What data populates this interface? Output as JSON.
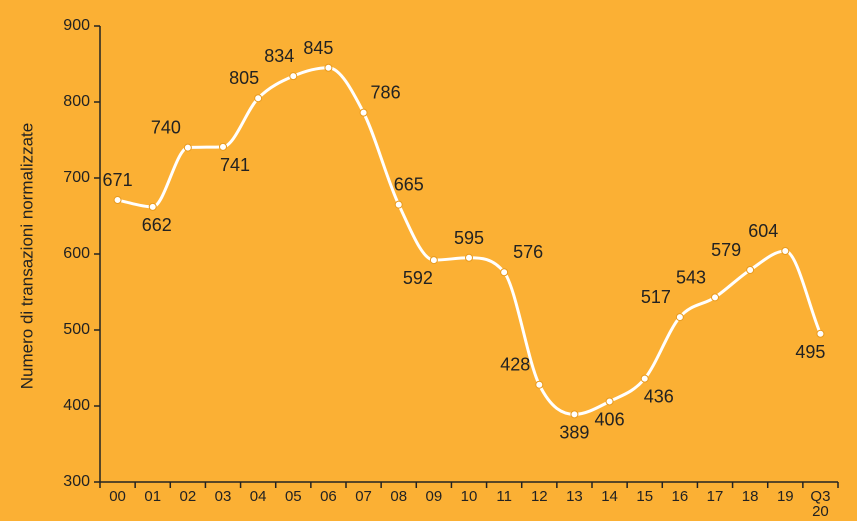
{
  "chart_data": {
    "type": "line",
    "ylabel": "Numero di transazioni normalizzate",
    "xlabel": "",
    "ylim": [
      300,
      900
    ],
    "yticks": [
      300,
      400,
      500,
      600,
      700,
      800,
      900
    ],
    "categories": [
      "00",
      "01",
      "02",
      "03",
      "04",
      "05",
      "06",
      "07",
      "08",
      "09",
      "10",
      "11",
      "12",
      "13",
      "14",
      "15",
      "16",
      "17",
      "18",
      "19",
      "Q3 20"
    ],
    "series": [
      {
        "values": [
          671,
          662,
          740,
          741,
          805,
          834,
          845,
          786,
          665,
          592,
          595,
          576,
          428,
          389,
          406,
          436,
          517,
          543,
          579,
          604,
          495
        ]
      }
    ],
    "data_labels": [
      "671",
      "662",
      "740",
      "741",
      "805",
      "834",
      "845",
      "786",
      "665",
      "592",
      "595",
      "576",
      "428",
      "389",
      "406",
      "436",
      "517",
      "543",
      "579",
      "604",
      "495"
    ],
    "grid": false,
    "colors": {
      "background": "#FBB034",
      "line": "#FFFFFF",
      "marker": "#FFFFFF",
      "axis": "#222222"
    }
  }
}
